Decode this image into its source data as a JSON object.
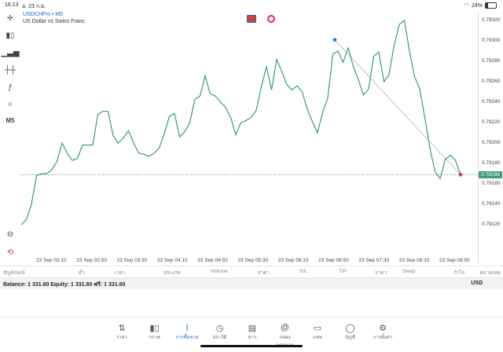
{
  "status": {
    "time": "16:13",
    "date": "อ. 23 ก.ย.",
    "battery": "24%",
    "battery_level": 0.24
  },
  "chart": {
    "symbol": "USDCHFm • M5",
    "description": "US Dollar vs Swiss Franc",
    "timeframe": "M5"
  },
  "price_axis": [
    "0.79320",
    "0.79300",
    "0.79280",
    "0.79260",
    "0.79240",
    "0.79220",
    "0.79200",
    "0.79180",
    "0.79160",
    "0.79140",
    "0.79120"
  ],
  "current_price": "0.79169",
  "time_axis": [
    "23 Sep 02:10",
    "23 Sep 02:50",
    "23 Sep 03:30",
    "23 Sep 04:10",
    "23 Sep 04:50",
    "23 Sep 05:30",
    "23 Sep 06:10",
    "23 Sep 06:50",
    "23 Sep 07:30",
    "23 Sep 08:10",
    "23 Sep 08:50"
  ],
  "chart_data": {
    "type": "line",
    "color": "#3d9b78",
    "ylim": [
      0.79112,
      0.79338
    ],
    "values": [
      0.7912,
      0.79125,
      0.7914,
      0.79168,
      0.7917,
      0.7917,
      0.79174,
      0.79182,
      0.792,
      0.7919,
      0.79183,
      0.79185,
      0.79198,
      0.79198,
      0.79198,
      0.79228,
      0.79231,
      0.79231,
      0.79207,
      0.792,
      0.79205,
      0.79212,
      0.792,
      0.7919,
      0.79189,
      0.79187,
      0.7919,
      0.79195,
      0.79209,
      0.79226,
      0.79229,
      0.79206,
      0.79211,
      0.7922,
      0.79243,
      0.79246,
      0.79266,
      0.79248,
      0.79246,
      0.7924,
      0.79235,
      0.79225,
      0.79208,
      0.7922,
      0.79222,
      0.79225,
      0.79232,
      0.79255,
      0.79275,
      0.79252,
      0.79282,
      0.7927,
      0.79257,
      0.79252,
      0.79256,
      0.7925,
      0.79233,
      0.79221,
      0.7921,
      0.7923,
      0.79244,
      0.79287,
      0.7929,
      0.79279,
      0.79293,
      0.79275,
      0.79262,
      0.79247,
      0.79253,
      0.79285,
      0.79289,
      0.7926,
      0.79267,
      0.79296,
      0.79316,
      0.7932,
      0.7929,
      0.79265,
      0.79253,
      0.79225,
      0.79195,
      0.79172,
      0.79165,
      0.79184,
      0.79188,
      0.79183,
      0.79169
    ],
    "trendline": [
      0.79301,
      0.79169
    ],
    "current": 0.79169
  },
  "headers": [
    "สัญลักษณ์",
    "ตั๋ว",
    "เวลา",
    "ประเภท",
    "Volume",
    "ราคา",
    "S/L",
    "T/P",
    "ราคา",
    "Swap",
    "กำไร",
    "หมายเหตุ"
  ],
  "account": {
    "balance_line": "Balance: 1 331.60  Equity: 1 331.60  ฟรี: 1 331.60",
    "currency": "USD"
  },
  "nav": [
    {
      "icon": "⇅",
      "label": "ราคา"
    },
    {
      "icon": "▮▯",
      "label": "กราฟ"
    },
    {
      "icon": "⌇",
      "label": "การซื้อขาย"
    },
    {
      "icon": "◷",
      "label": "ประวัติ"
    },
    {
      "icon": "▤",
      "label": "ข่าว"
    },
    {
      "icon": "@",
      "label": "กล่องจดหมาย"
    },
    {
      "icon": "▭",
      "label": "แชท"
    },
    {
      "icon": "◯",
      "label": "บัญชี"
    },
    {
      "icon": "⚙",
      "label": "การตั้งค่า"
    }
  ]
}
